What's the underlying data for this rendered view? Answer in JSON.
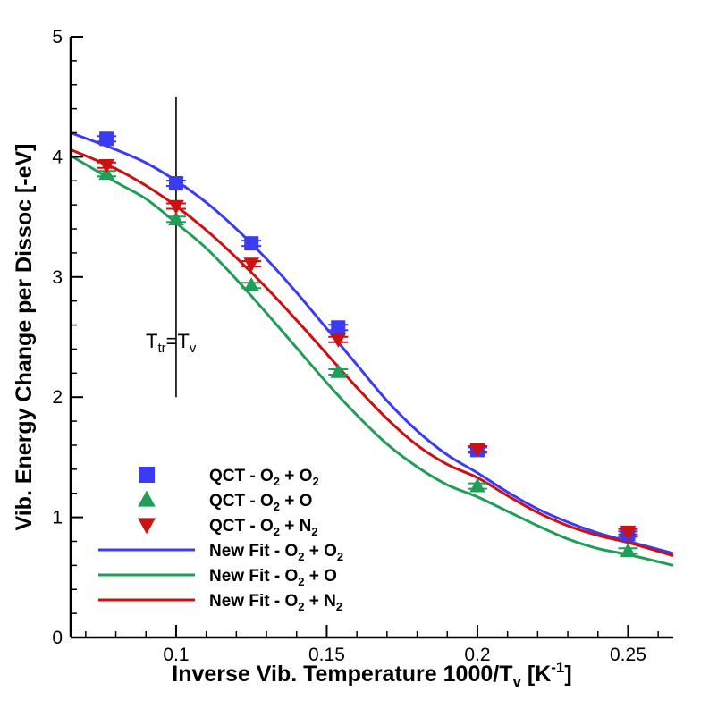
{
  "chart_data": {
    "type": "scatter",
    "xlabel": "Inverse Vib. Temperature 1000/T",
    "xlabel_sub": "v",
    "xlabel_unit_pre": " [K",
    "xlabel_unit_sup": "-1",
    "xlabel_unit_post": "]",
    "ylabel": "Vib. Energy Change per Dissoc [-eV]",
    "xlim": [
      0.065,
      0.265
    ],
    "ylim": [
      0,
      5
    ],
    "x_ticks": [
      "0.1",
      "0.15",
      "0.2",
      "0.25"
    ],
    "y_ticks": [
      "0",
      "1",
      "2",
      "3",
      "4",
      "5"
    ],
    "x_tick_values": [
      0.1,
      0.15,
      0.2,
      0.25
    ],
    "y_tick_values": [
      0,
      1,
      2,
      3,
      4,
      5
    ],
    "grid": false,
    "legend_position": "bottom-left",
    "annotation": {
      "x": 0.1,
      "y_range": [
        2.0,
        4.5
      ],
      "text_main": "T",
      "text_sub1": "tr",
      "text_mid": "=T",
      "text_sub2": "v"
    },
    "markers": [
      {
        "legend_prefix": "QCT - O",
        "legend_sub1": "2",
        "legend_mid": " + O",
        "legend_sub2": "2",
        "color": "#3b3bf5",
        "shape": "square",
        "x": [
          0.0769,
          0.1,
          0.125,
          0.1538,
          0.2,
          0.25
        ],
        "y": [
          4.15,
          3.78,
          3.28,
          2.58,
          1.56,
          0.86
        ]
      },
      {
        "legend_prefix": "QCT - O",
        "legend_sub1": "2",
        "legend_mid": " + O",
        "legend_sub2": "",
        "color": "#1f9e57",
        "shape": "triangle-up",
        "x": [
          0.0769,
          0.1,
          0.125,
          0.1538,
          0.2,
          0.25
        ],
        "y": [
          3.86,
          3.48,
          2.93,
          2.21,
          1.26,
          0.72
        ]
      },
      {
        "legend_prefix": "QCT - O",
        "legend_sub1": "2",
        "legend_mid": " + N",
        "legend_sub2": "2",
        "color": "#cc1111",
        "shape": "triangle-down",
        "x": [
          0.0769,
          0.1,
          0.125,
          0.1538,
          0.2,
          0.25
        ],
        "y": [
          3.93,
          3.59,
          3.11,
          2.48,
          1.57,
          0.88
        ]
      }
    ],
    "fits": [
      {
        "legend_prefix": "New Fit - O",
        "legend_sub1": "2",
        "legend_mid": " + O",
        "legend_sub2": "2",
        "color": "#3b3bf5",
        "x": [
          0.065,
          0.08,
          0.09,
          0.1,
          0.11,
          0.12,
          0.13,
          0.14,
          0.15,
          0.16,
          0.17,
          0.18,
          0.19,
          0.2,
          0.21,
          0.22,
          0.23,
          0.24,
          0.25,
          0.265
        ],
        "y": [
          4.2,
          4.06,
          3.95,
          3.8,
          3.62,
          3.4,
          3.15,
          2.87,
          2.57,
          2.27,
          1.97,
          1.72,
          1.52,
          1.37,
          1.21,
          1.07,
          0.96,
          0.87,
          0.8,
          0.7
        ]
      },
      {
        "legend_prefix": "New Fit - O",
        "legend_sub1": "2",
        "legend_mid": " + O",
        "legend_sub2": "",
        "color": "#1f9e57",
        "x": [
          0.065,
          0.08,
          0.09,
          0.1,
          0.11,
          0.12,
          0.13,
          0.14,
          0.15,
          0.16,
          0.17,
          0.18,
          0.19,
          0.2,
          0.21,
          0.22,
          0.23,
          0.24,
          0.25,
          0.265
        ],
        "y": [
          4.01,
          3.79,
          3.65,
          3.45,
          3.24,
          2.98,
          2.7,
          2.41,
          2.12,
          1.85,
          1.61,
          1.42,
          1.27,
          1.17,
          1.05,
          0.93,
          0.82,
          0.74,
          0.69,
          0.6
        ]
      },
      {
        "legend_prefix": "New Fit - O",
        "legend_sub1": "2",
        "legend_mid": " + N",
        "legend_sub2": "2",
        "color": "#cc1111",
        "x": [
          0.065,
          0.08,
          0.09,
          0.1,
          0.11,
          0.12,
          0.13,
          0.14,
          0.15,
          0.16,
          0.17,
          0.18,
          0.19,
          0.2,
          0.21,
          0.22,
          0.23,
          0.24,
          0.25,
          0.265
        ],
        "y": [
          4.06,
          3.9,
          3.76,
          3.59,
          3.39,
          3.16,
          2.91,
          2.64,
          2.36,
          2.08,
          1.82,
          1.6,
          1.44,
          1.33,
          1.18,
          1.04,
          0.93,
          0.85,
          0.79,
          0.68
        ]
      }
    ]
  }
}
